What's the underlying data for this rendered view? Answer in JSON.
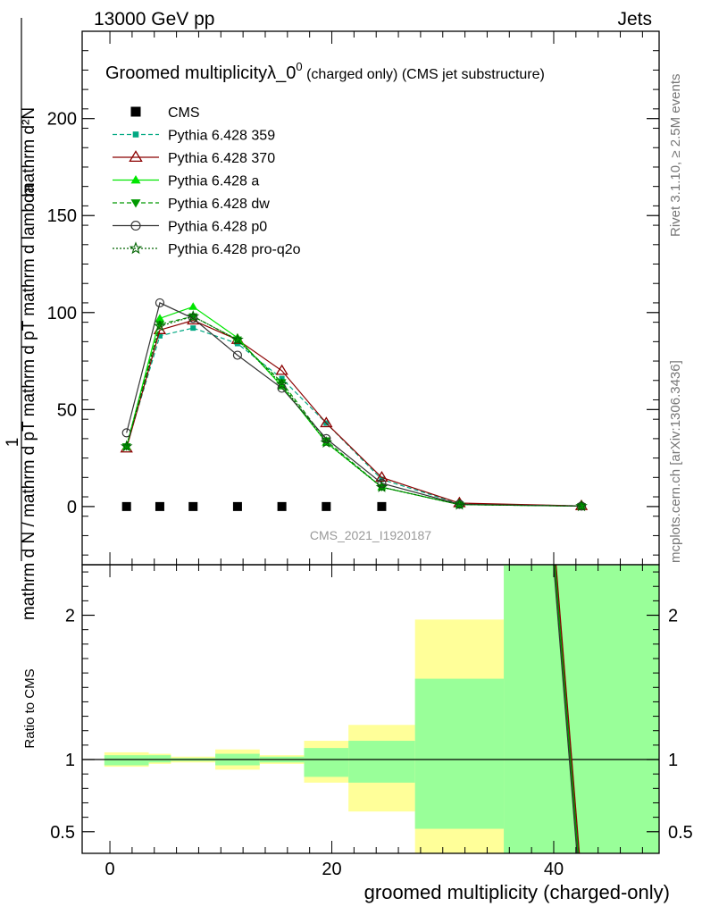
{
  "header": {
    "left": "13000 GeV pp",
    "right": "Jets"
  },
  "side_labels": {
    "rivet": "Rivet 3.1.10, ≥ 2.5M events",
    "mcplots": "mcplots.cern.ch [arXiv:1306.3436]"
  },
  "chart_data": [
    {
      "type": "scatter",
      "title_main": "Groomed multiplicityλ_0",
      "title_sup": "0",
      "title_rest": " (charged only) (CMS jet substructure)",
      "watermark": "CMS_2021_I1920187",
      "ylabel_numerator": "mathrm d²N",
      "ylabel_denominator": "mathrm d N / mathrm d pT mathrm d pT mathrm d lambda",
      "ylabel_one": "1",
      "xlim": [
        -2.5,
        49.5
      ],
      "ylim": [
        -30,
        245
      ],
      "yticks": [
        0,
        50,
        100,
        150,
        200
      ],
      "series": [
        {
          "name": "CMS",
          "color": "#000000",
          "marker": "square",
          "line": "none",
          "x": [
            1.5,
            4.5,
            7.5,
            11.5,
            15.5,
            19.5,
            24.5
          ],
          "y": [
            0,
            0,
            0,
            0,
            0,
            0,
            0
          ]
        },
        {
          "name": "Pythia 6.428 359",
          "color": "#00a882",
          "marker": "small-square",
          "line": "dashed",
          "x": [
            1.5,
            4.5,
            7.5,
            11.5,
            15.5,
            19.5,
            24.5,
            31.5,
            42.5
          ],
          "y": [
            31,
            88,
            92,
            84,
            66,
            43,
            14,
            1.5,
            0.3
          ]
        },
        {
          "name": "Pythia 6.428 370",
          "color": "#8b0000",
          "marker": "open-triangle",
          "line": "solid",
          "x": [
            1.5,
            4.5,
            7.5,
            11.5,
            15.5,
            19.5,
            24.5,
            31.5,
            42.5
          ],
          "y": [
            30,
            91,
            96,
            86,
            70,
            43,
            15,
            1.8,
            0.3
          ]
        },
        {
          "name": "Pythia 6.428 a",
          "color": "#00e600",
          "marker": "filled-triangle",
          "line": "solid",
          "x": [
            1.5,
            4.5,
            7.5,
            11.5,
            15.5,
            19.5,
            24.5,
            31.5,
            42.5
          ],
          "y": [
            31,
            97,
            103,
            87,
            62,
            33,
            10,
            1,
            0.2
          ]
        },
        {
          "name": "Pythia 6.428 dw",
          "color": "#009900",
          "marker": "filled-triangle-down",
          "line": "dashed",
          "x": [
            1.5,
            4.5,
            7.5,
            11.5,
            15.5,
            19.5,
            24.5,
            31.5,
            42.5
          ],
          "y": [
            31,
            94,
            98,
            86,
            64,
            34,
            10,
            1,
            0.2
          ]
        },
        {
          "name": "Pythia 6.428 p0",
          "color": "#333333",
          "marker": "open-circle",
          "line": "solid",
          "x": [
            1.5,
            4.5,
            7.5,
            11.5,
            15.5,
            19.5,
            24.5,
            31.5,
            42.5
          ],
          "y": [
            38,
            105,
            97,
            78,
            61,
            35,
            12,
            1.2,
            0.2
          ]
        },
        {
          "name": "Pythia 6.428 pro-q2o",
          "color": "#006400",
          "marker": "star",
          "line": "dotted",
          "x": [
            1.5,
            4.5,
            7.5,
            11.5,
            15.5,
            19.5,
            24.5,
            31.5,
            42.5
          ],
          "y": [
            31,
            93,
            98,
            86,
            63,
            33,
            10,
            1,
            0.2
          ]
        }
      ]
    },
    {
      "type": "area",
      "ylabel": "Ratio to CMS",
      "xlabel": "groomed multiplicity (charged-only)",
      "xlim": [
        -2.5,
        49.5
      ],
      "ylim": [
        0.35,
        2.35
      ],
      "yticks": [
        0.5,
        1,
        2
      ],
      "xticks": [
        0,
        20,
        40
      ],
      "bands": {
        "edges": [
          -0.5,
          3.5,
          5.5,
          9.5,
          13.5,
          17.5,
          21.5,
          27.5,
          35.5,
          49.5
        ],
        "yellow_low": [
          0.95,
          0.97,
          0.98,
          0.93,
          0.97,
          0.84,
          0.64,
          0.35,
          0.35
        ],
        "yellow_high": [
          1.05,
          1.04,
          1.02,
          1.07,
          1.03,
          1.13,
          1.24,
          1.97,
          2.35
        ],
        "green_low": [
          0.96,
          0.98,
          0.99,
          0.96,
          0.98,
          0.88,
          0.84,
          0.52,
          0.35
        ],
        "green_high": [
          1.03,
          1.03,
          1.01,
          1.04,
          1.02,
          1.08,
          1.13,
          1.56,
          2.35
        ]
      },
      "ratio_lines": [
        {
          "color": "#8b0000",
          "x": [
            40.2,
            42.3
          ],
          "y": [
            2.35,
            0.35
          ]
        },
        {
          "color": "#333333",
          "x": [
            40.0,
            42.1
          ],
          "y": [
            2.35,
            0.35
          ]
        },
        {
          "color": "#009900",
          "x": [
            40.1,
            42.2
          ],
          "y": [
            2.35,
            0.35
          ]
        }
      ],
      "colors": {
        "yellow": "#ffff99",
        "green": "#99ff99"
      }
    }
  ]
}
